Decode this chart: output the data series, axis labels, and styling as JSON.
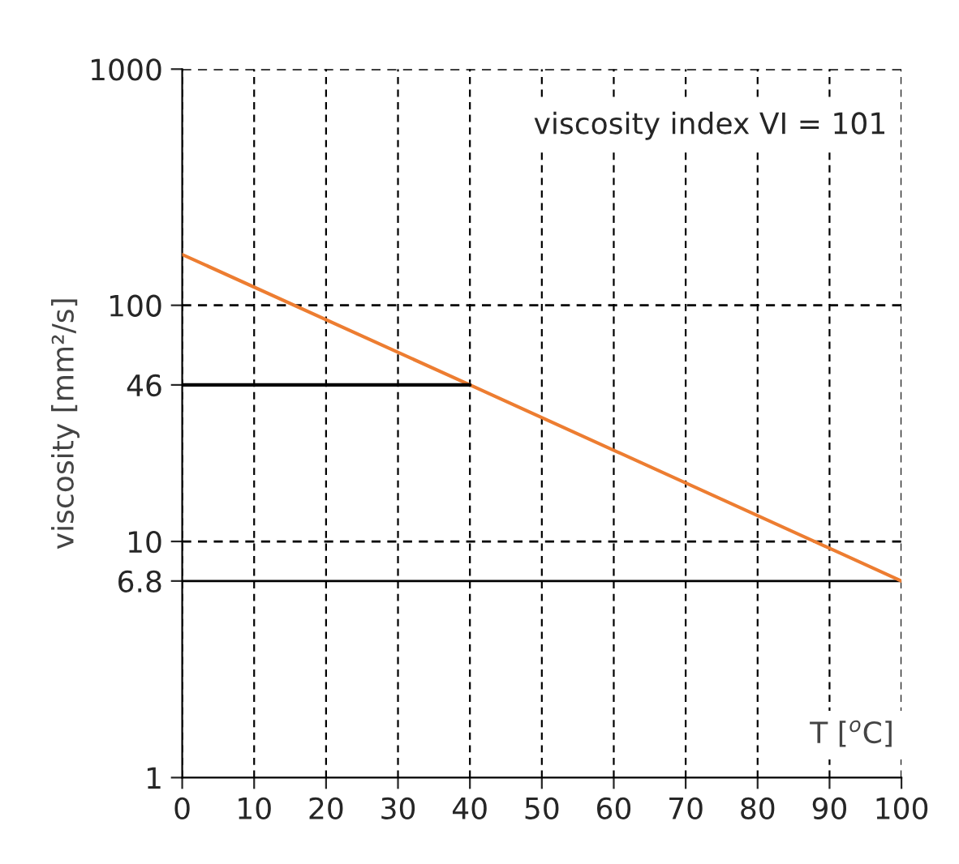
{
  "chart_data": {
    "type": "line",
    "xlabel": "T [$^{o}$C]",
    "ylabel": "viscosity [mm²/s]",
    "log": "y",
    "x": [
      0,
      40,
      100
    ],
    "series": [
      {
        "color": "#ed7d31",
        "values": [
          164,
          46,
          6.8
        ]
      },
      {
        "type": "line",
        "color": "#000000",
        "x": [
          0,
          40
        ],
        "values": [
          46,
          46
        ]
      }
    ],
    "xlim": [
      0,
      100
    ],
    "xticks": [
      0,
      10,
      20,
      30,
      40,
      50,
      60,
      70,
      80,
      90,
      100
    ],
    "ylim": [
      1,
      1000
    ],
    "yticks": [
      1,
      6.8,
      10,
      46,
      100,
      1000
    ],
    "grid": "x",
    "marker": "none",
    "line_style": "solid",
    "ref_lines": [
      {
        "axis": "y",
        "value": 6.8,
        "color": "#000000",
        "line_style": "solid"
      },
      {
        "axis": "y",
        "value": 10,
        "color": "#000000",
        "line_style": "dashed"
      },
      {
        "axis": "y",
        "value": 100,
        "color": "#000000",
        "line_style": "dashed"
      },
      {
        "axis": "y",
        "value": 1000,
        "color": "#000000",
        "line_style": "dashed"
      }
    ],
    "annotations": [
      "viscosity index VI = 101"
    ]
  }
}
